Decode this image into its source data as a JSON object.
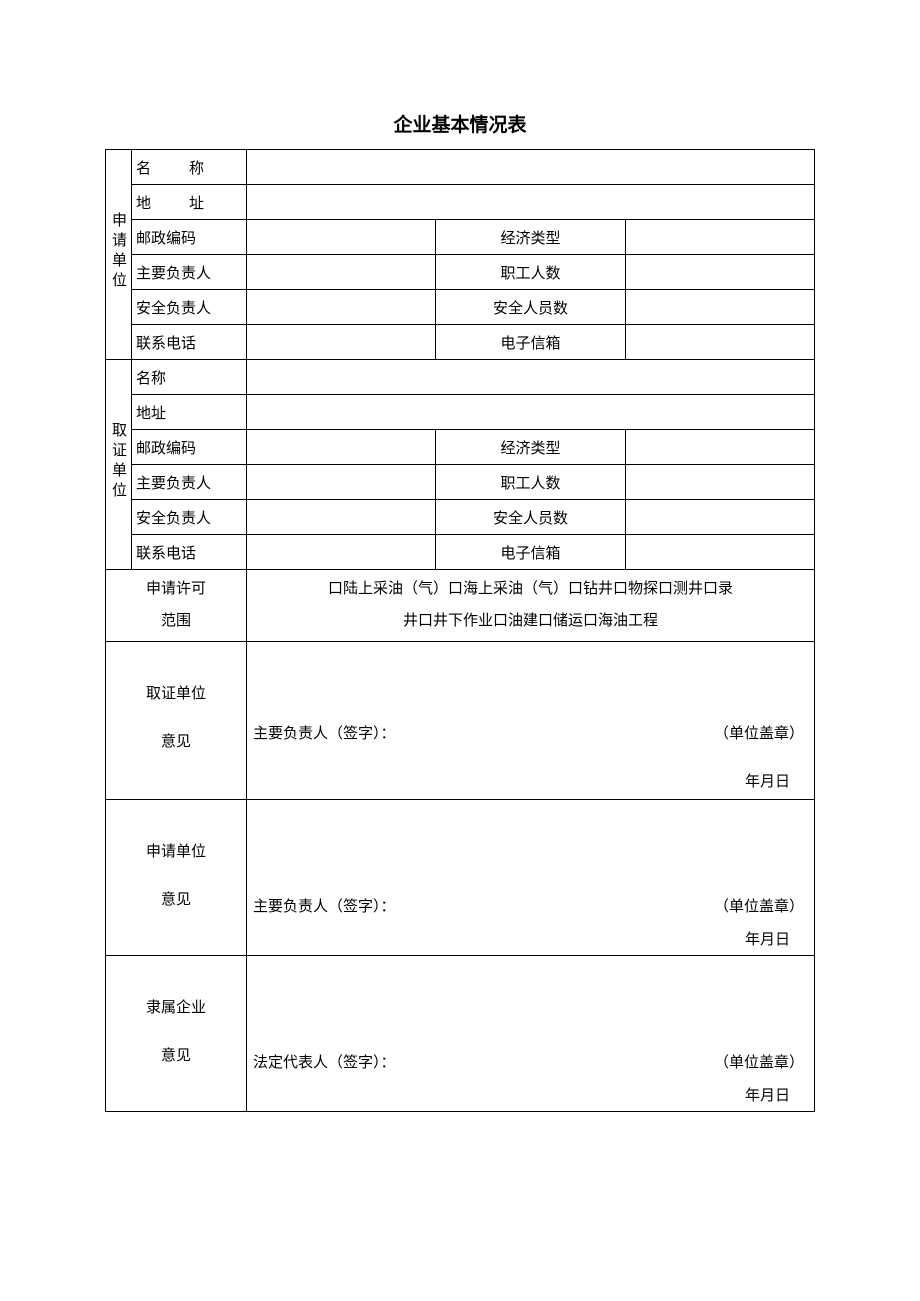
{
  "title": "企业基本情况表",
  "applicant": {
    "section_label": "申请单位",
    "name_label": "名",
    "name_label2": "称",
    "addr_label": "地",
    "addr_label2": "址",
    "postcode_label": "邮政编码",
    "econ_type_label": "经济类型",
    "principal_label": "主要负责人",
    "staff_count_label": "职工人数",
    "safety_officer_label": "安全负责人",
    "safety_count_label": "安全人员数",
    "phone_label": "联系电话",
    "email_label": "电子信箱"
  },
  "cert": {
    "section_label": "取证单位",
    "name_label": "名称",
    "addr_label": "地址",
    "postcode_label": "邮政编码",
    "econ_type_label": "经济类型",
    "principal_label": "主要负责人",
    "staff_count_label": "职工人数",
    "safety_officer_label": "安全负责人",
    "safety_count_label": "安全人员数",
    "phone_label": "联系电话",
    "email_label": "电子信箱"
  },
  "scope": {
    "label_line1": "申请许可",
    "label_line2": "范围",
    "content_line1": "口陆上采油（气）口海上采油（气）口钻井口物探口测井口录",
    "content_line2": "井口井下作业口油建口储运口海油工程"
  },
  "opinion1": {
    "label_line1": "取证单位",
    "label_line2": "意见",
    "signer": "主要负责人（签字）：",
    "stamp": "（单位盖章）",
    "date": "年月日"
  },
  "opinion2": {
    "label_line1": "申请单位",
    "label_line2": "意见",
    "signer": "主要负责人（签字）：",
    "stamp": "（单位盖章）",
    "date": "年月日"
  },
  "opinion3": {
    "label_line1": "隶属企业",
    "label_line2": "意见",
    "signer": "法定代表人（签字）：",
    "stamp": "（单位盖章）",
    "date": "年月日"
  }
}
